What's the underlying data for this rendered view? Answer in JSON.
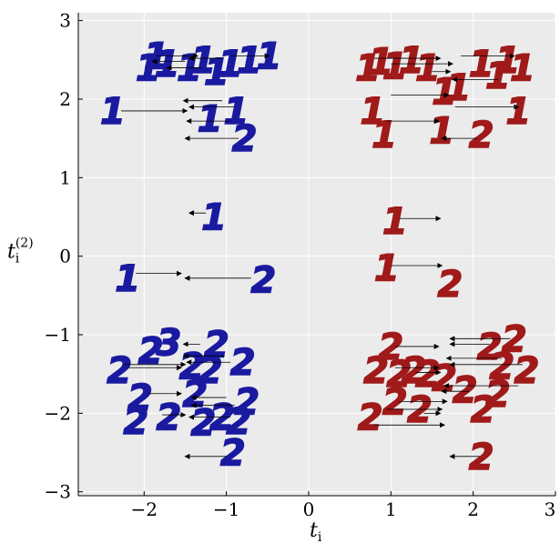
{
  "chart_data": {
    "type": "scatter",
    "title": "",
    "xlabel": "t",
    "xlabel_sub": "i",
    "ylabel": "t",
    "ylabel_sub": "i",
    "ylabel_sup": "(2)",
    "xlim": [
      -2.8,
      3.0
    ],
    "ylim": [
      -3.05,
      3.1
    ],
    "xticks": [
      -2,
      -1,
      0,
      1,
      2,
      3
    ],
    "yticks": [
      -3,
      -2,
      -1,
      0,
      1,
      2,
      3
    ],
    "xtick_labels": [
      "−2",
      "−1",
      "0",
      "1",
      "2",
      "3"
    ],
    "ytick_labels": [
      "−3",
      "−2",
      "−1",
      "0",
      "1",
      "2",
      "3"
    ],
    "grid": true,
    "colors": {
      "left": "#1a1aa0",
      "right": "#a01a1a",
      "background": "#ebebeb",
      "grid": "#ffffff",
      "arrow": "#000000"
    },
    "series": [
      {
        "points": [
          {
            "x": -1.95,
            "y": 2.4,
            "d": "1"
          },
          {
            "x": -1.85,
            "y": 2.55,
            "d": "1"
          },
          {
            "x": -1.72,
            "y": 2.45,
            "d": "1"
          },
          {
            "x": -1.45,
            "y": 2.4,
            "d": "1"
          },
          {
            "x": -1.28,
            "y": 2.5,
            "d": "1"
          },
          {
            "x": -1.12,
            "y": 2.35,
            "d": "1"
          },
          {
            "x": -0.95,
            "y": 2.45,
            "d": "1"
          },
          {
            "x": -0.72,
            "y": 2.5,
            "d": "1"
          },
          {
            "x": -0.48,
            "y": 2.55,
            "d": "1"
          },
          {
            "x": -2.38,
            "y": 1.85,
            "d": "1"
          },
          {
            "x": -1.2,
            "y": 1.75,
            "d": "1"
          },
          {
            "x": -0.88,
            "y": 1.85,
            "d": "1"
          },
          {
            "x": -0.78,
            "y": 1.5,
            "d": "2"
          },
          {
            "x": -1.15,
            "y": 0.5,
            "d": "1"
          },
          {
            "x": -2.2,
            "y": -0.28,
            "d": "1"
          },
          {
            "x": -0.55,
            "y": -0.3,
            "d": "2"
          },
          {
            "x": -2.3,
            "y": -1.45,
            "d": "2"
          },
          {
            "x": -1.92,
            "y": -1.2,
            "d": "2"
          },
          {
            "x": -1.7,
            "y": -1.1,
            "d": "3"
          },
          {
            "x": -1.42,
            "y": -1.4,
            "d": "2"
          },
          {
            "x": -1.12,
            "y": -1.12,
            "d": "2"
          },
          {
            "x": -1.2,
            "y": -1.45,
            "d": "2"
          },
          {
            "x": -0.8,
            "y": -1.35,
            "d": "2"
          },
          {
            "x": -2.05,
            "y": -1.8,
            "d": "2"
          },
          {
            "x": -1.38,
            "y": -1.75,
            "d": "2"
          },
          {
            "x": -0.75,
            "y": -1.85,
            "d": "2"
          },
          {
            "x": -2.1,
            "y": -2.1,
            "d": "2"
          },
          {
            "x": -1.7,
            "y": -2.05,
            "d": "2"
          },
          {
            "x": -1.28,
            "y": -2.12,
            "d": "2"
          },
          {
            "x": -1.05,
            "y": -2.05,
            "d": "2"
          },
          {
            "x": -0.85,
            "y": -2.1,
            "d": "2"
          },
          {
            "x": -0.92,
            "y": -2.5,
            "d": "2"
          }
        ]
      },
      {
        "points": [
          {
            "x": 0.72,
            "y": 2.4,
            "d": "1"
          },
          {
            "x": 0.88,
            "y": 2.48,
            "d": "1"
          },
          {
            "x": 1.05,
            "y": 2.42,
            "d": "1"
          },
          {
            "x": 1.25,
            "y": 2.5,
            "d": "1"
          },
          {
            "x": 1.45,
            "y": 2.4,
            "d": "1"
          },
          {
            "x": 1.65,
            "y": 2.1,
            "d": "1"
          },
          {
            "x": 1.82,
            "y": 2.15,
            "d": "1"
          },
          {
            "x": 2.1,
            "y": 2.45,
            "d": "1"
          },
          {
            "x": 2.3,
            "y": 2.3,
            "d": "1"
          },
          {
            "x": 2.42,
            "y": 2.5,
            "d": "1"
          },
          {
            "x": 2.6,
            "y": 2.4,
            "d": "1"
          },
          {
            "x": 2.55,
            "y": 1.85,
            "d": "1"
          },
          {
            "x": 0.78,
            "y": 1.85,
            "d": "1"
          },
          {
            "x": 0.92,
            "y": 1.55,
            "d": "1"
          },
          {
            "x": 1.62,
            "y": 1.6,
            "d": "1"
          },
          {
            "x": 2.1,
            "y": 1.55,
            "d": "2"
          },
          {
            "x": 1.05,
            "y": 0.45,
            "d": "1"
          },
          {
            "x": 0.95,
            "y": -0.15,
            "d": "1"
          },
          {
            "x": 1.72,
            "y": -0.35,
            "d": "2"
          },
          {
            "x": 0.82,
            "y": -1.45,
            "d": "2"
          },
          {
            "x": 1.0,
            "y": -1.15,
            "d": "2"
          },
          {
            "x": 1.1,
            "y": -1.5,
            "d": "2"
          },
          {
            "x": 1.28,
            "y": -1.45,
            "d": "2"
          },
          {
            "x": 1.45,
            "y": -1.5,
            "d": "2"
          },
          {
            "x": 1.65,
            "y": -1.55,
            "d": "2"
          },
          {
            "x": 2.2,
            "y": -1.15,
            "d": "2"
          },
          {
            "x": 2.5,
            "y": -1.05,
            "d": "2"
          },
          {
            "x": 2.35,
            "y": -1.4,
            "d": "2"
          },
          {
            "x": 2.65,
            "y": -1.45,
            "d": "2"
          },
          {
            "x": 0.75,
            "y": -2.05,
            "d": "2"
          },
          {
            "x": 1.05,
            "y": -1.85,
            "d": "2"
          },
          {
            "x": 1.35,
            "y": -1.95,
            "d": "2"
          },
          {
            "x": 1.9,
            "y": -1.7,
            "d": "2"
          },
          {
            "x": 2.12,
            "y": -1.95,
            "d": "2"
          },
          {
            "x": 2.3,
            "y": -1.75,
            "d": "2"
          },
          {
            "x": 2.1,
            "y": -2.55,
            "d": "2"
          }
        ]
      }
    ],
    "arrows": [
      {
        "x1": -1.85,
        "y1": 2.55,
        "x2": -1.35,
        "y2": 2.55
      },
      {
        "x1": -1.5,
        "y1": 2.48,
        "x2": -1.9,
        "y2": 2.48
      },
      {
        "x1": -1.3,
        "y1": 2.4,
        "x2": -1.72,
        "y2": 2.4
      },
      {
        "x1": -1.05,
        "y1": 2.52,
        "x2": -1.45,
        "y2": 2.52
      },
      {
        "x1": -0.95,
        "y1": 2.55,
        "x2": -0.48,
        "y2": 2.55
      },
      {
        "x1": -2.28,
        "y1": 1.85,
        "x2": -1.48,
        "y2": 1.85
      },
      {
        "x1": -1.05,
        "y1": 1.98,
        "x2": -1.52,
        "y2": 1.98
      },
      {
        "x1": -0.9,
        "y1": 1.9,
        "x2": -1.45,
        "y2": 1.9
      },
      {
        "x1": -0.95,
        "y1": 1.72,
        "x2": -1.48,
        "y2": 1.72
      },
      {
        "x1": -0.85,
        "y1": 1.5,
        "x2": -1.5,
        "y2": 1.5
      },
      {
        "x1": -1.25,
        "y1": 0.55,
        "x2": -1.45,
        "y2": 0.55
      },
      {
        "x1": -2.1,
        "y1": -0.22,
        "x2": -1.55,
        "y2": -0.22
      },
      {
        "x1": -0.7,
        "y1": -0.28,
        "x2": -1.5,
        "y2": -0.28
      },
      {
        "x1": -1.32,
        "y1": -1.12,
        "x2": -1.52,
        "y2": -1.12
      },
      {
        "x1": -1.02,
        "y1": -1.27,
        "x2": -1.52,
        "y2": -1.27
      },
      {
        "x1": -0.95,
        "y1": -1.35,
        "x2": -1.48,
        "y2": -1.35
      },
      {
        "x1": -2.25,
        "y1": -1.38,
        "x2": -1.5,
        "y2": -1.38
      },
      {
        "x1": -2.2,
        "y1": -1.42,
        "x2": -1.55,
        "y2": -1.42
      },
      {
        "x1": -1.95,
        "y1": -1.75,
        "x2": -1.55,
        "y2": -1.75
      },
      {
        "x1": -1.0,
        "y1": -1.8,
        "x2": -1.42,
        "y2": -1.8
      },
      {
        "x1": -0.9,
        "y1": -1.9,
        "x2": -1.42,
        "y2": -1.9
      },
      {
        "x1": -1.78,
        "y1": -2.02,
        "x2": -1.5,
        "y2": -2.02
      },
      {
        "x1": -0.95,
        "y1": -2.05,
        "x2": -1.45,
        "y2": -2.05
      },
      {
        "x1": -1.0,
        "y1": -2.55,
        "x2": -1.5,
        "y2": -2.55
      },
      {
        "x1": 0.8,
        "y1": 2.52,
        "x2": 1.6,
        "y2": 2.52
      },
      {
        "x1": 1.0,
        "y1": 2.45,
        "x2": 1.75,
        "y2": 2.45
      },
      {
        "x1": 1.5,
        "y1": 2.35,
        "x2": 1.72,
        "y2": 2.35
      },
      {
        "x1": 1.85,
        "y1": 2.55,
        "x2": 2.5,
        "y2": 2.55
      },
      {
        "x1": 2.3,
        "y1": 2.25,
        "x2": 1.75,
        "y2": 2.25
      },
      {
        "x1": 1.0,
        "y1": 2.05,
        "x2": 1.7,
        "y2": 2.05
      },
      {
        "x1": 1.78,
        "y1": 1.9,
        "x2": 2.55,
        "y2": 1.9
      },
      {
        "x1": 0.95,
        "y1": 1.72,
        "x2": 1.58,
        "y2": 1.72
      },
      {
        "x1": 2.05,
        "y1": 1.5,
        "x2": 1.62,
        "y2": 1.5
      },
      {
        "x1": 1.1,
        "y1": 0.48,
        "x2": 1.6,
        "y2": 0.48
      },
      {
        "x1": 1.0,
        "y1": -0.12,
        "x2": 1.62,
        "y2": -0.12
      },
      {
        "x1": 1.05,
        "y1": -1.15,
        "x2": 1.58,
        "y2": -1.15
      },
      {
        "x1": 2.2,
        "y1": -1.12,
        "x2": 1.72,
        "y2": -1.12
      },
      {
        "x1": 2.45,
        "y1": -1.05,
        "x2": 1.72,
        "y2": -1.05
      },
      {
        "x1": 2.35,
        "y1": -1.3,
        "x2": 1.68,
        "y2": -1.3
      },
      {
        "x1": 1.05,
        "y1": -1.42,
        "x2": 1.58,
        "y2": -1.42
      },
      {
        "x1": 1.3,
        "y1": -1.48,
        "x2": 1.6,
        "y2": -1.48
      },
      {
        "x1": 2.6,
        "y1": -1.38,
        "x2": 1.72,
        "y2": -1.38
      },
      {
        "x1": 2.55,
        "y1": -1.65,
        "x2": 1.65,
        "y2": -1.65
      },
      {
        "x1": 1.95,
        "y1": -1.72,
        "x2": 1.62,
        "y2": -1.72
      },
      {
        "x1": 1.1,
        "y1": -1.85,
        "x2": 1.68,
        "y2": -1.85
      },
      {
        "x1": 0.95,
        "y1": -1.95,
        "x2": 1.62,
        "y2": -1.95
      },
      {
        "x1": 1.4,
        "y1": -2.0,
        "x2": 1.6,
        "y2": -2.0
      },
      {
        "x1": 0.8,
        "y1": -2.15,
        "x2": 1.65,
        "y2": -2.15
      },
      {
        "x1": 2.08,
        "y1": -2.55,
        "x2": 1.72,
        "y2": -2.55
      }
    ]
  }
}
